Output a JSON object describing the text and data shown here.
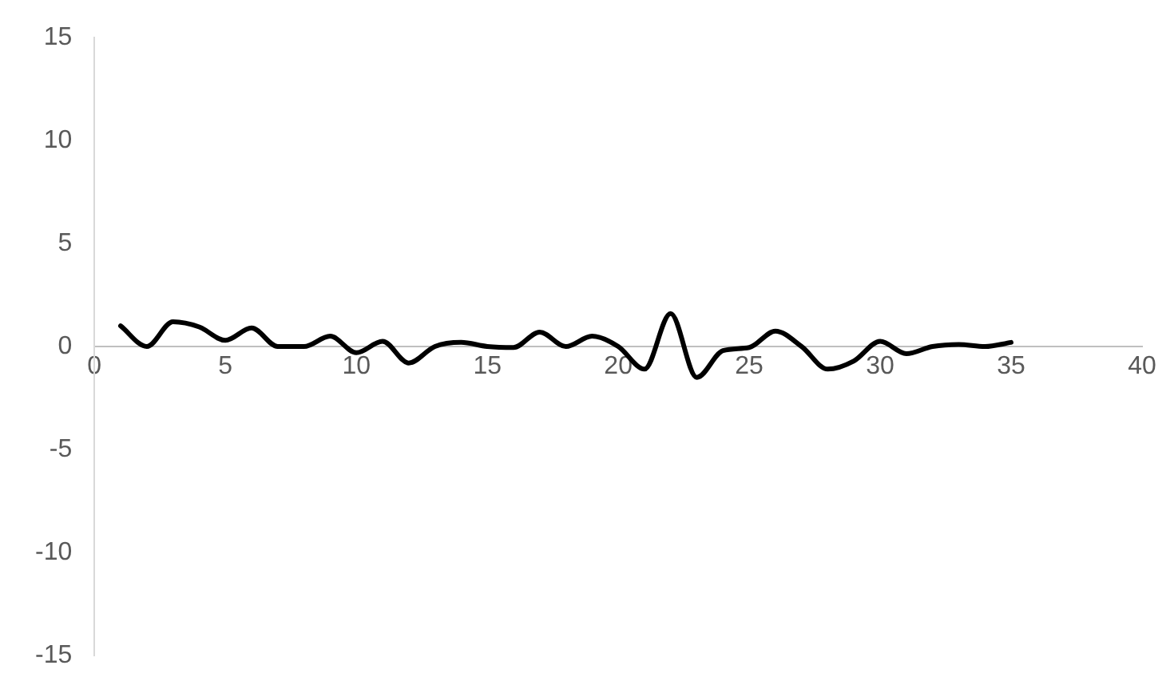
{
  "chart_data": {
    "type": "line",
    "x": [
      1,
      2,
      3,
      4,
      5,
      6,
      7,
      8,
      9,
      10,
      11,
      12,
      13,
      14,
      15,
      16,
      17,
      18,
      19,
      20,
      21,
      22,
      23,
      24,
      25,
      26,
      27,
      28,
      29,
      30,
      31,
      32,
      33,
      34,
      35
    ],
    "series": [
      {
        "color": "#000000",
        "values": [
          1.0,
          0,
          1.2,
          0.95,
          0.3,
          0.9,
          0,
          0,
          0.5,
          -0.3,
          0.25,
          -0.8,
          0,
          0.2,
          0,
          -0.05,
          0.7,
          0,
          0.5,
          0,
          -1.1,
          1.6,
          -1.5,
          -0.2,
          -0.05,
          0.75,
          0,
          -1.1,
          -0.7,
          0.25,
          -0.35,
          0,
          0.1,
          0,
          0.2
        ]
      }
    ],
    "xlim": [
      0,
      40
    ],
    "xticks": [
      0,
      5,
      10,
      15,
      20,
      25,
      30,
      35,
      40
    ],
    "ylim": [
      -15,
      15
    ],
    "yticks": [
      -15,
      -10,
      -5,
      0,
      5,
      10,
      15
    ],
    "grid": false,
    "legend": false,
    "marker": "none",
    "line_style": "solid"
  }
}
